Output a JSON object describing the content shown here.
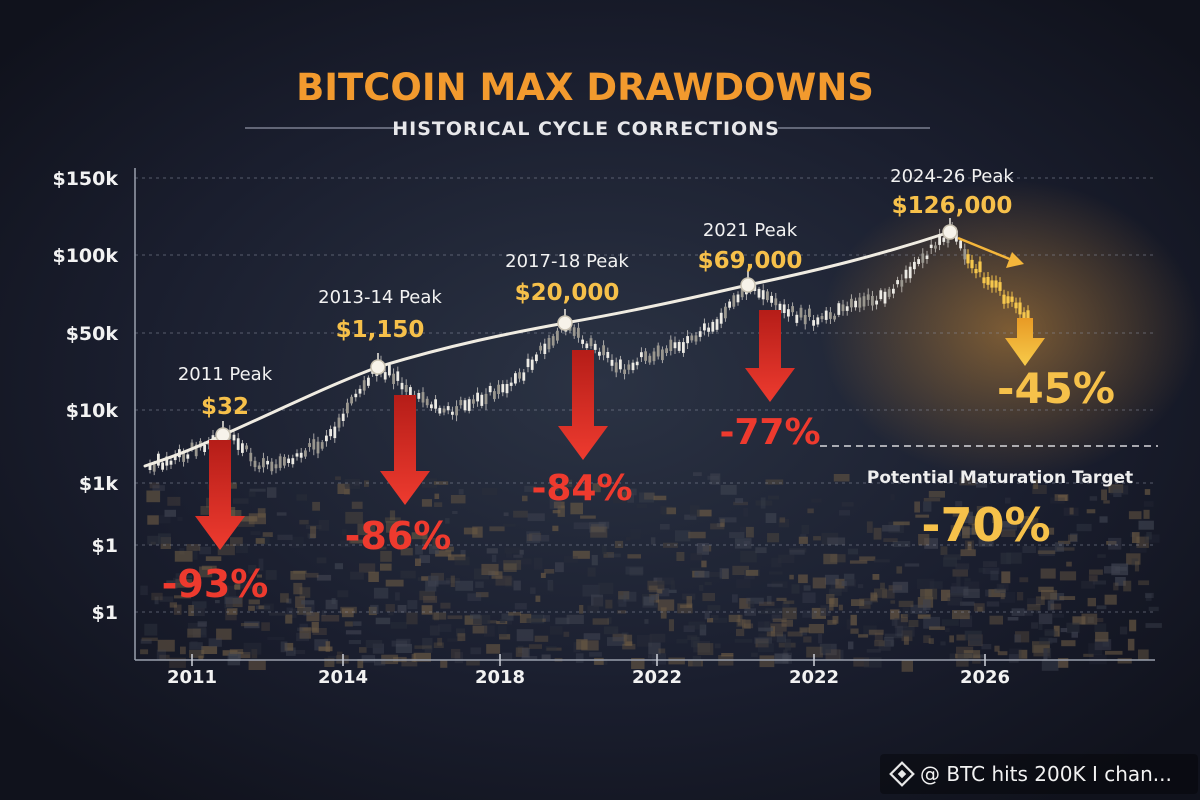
{
  "chart_data": {
    "type": "line",
    "title": "BITCOIN MAX DRAWDOWNS",
    "subtitle": "HISTORICAL CYCLE CORRECTIONS",
    "y_ticks": [
      "$150k",
      "$100k",
      "$50k",
      "$10k",
      "$1k",
      "$1",
      "$1"
    ],
    "x_ticks": [
      "2011",
      "2014",
      "2018",
      "2022",
      "2022",
      "2026"
    ],
    "scale": "log",
    "peaks": [
      {
        "label": "2011 Peak",
        "price_label": "$32",
        "price": 32,
        "drawdown_label": "-93%",
        "drawdown": -93
      },
      {
        "label": "2013-14 Peak",
        "price_label": "$1,150",
        "price": 1150,
        "drawdown_label": "-86%",
        "drawdown": -86
      },
      {
        "label": "2017-18 Peak",
        "price_label": "$20,000",
        "price": 20000,
        "drawdown_label": "-84%",
        "drawdown": -84
      },
      {
        "label": "2021 Peak",
        "price_label": "$69,000",
        "price": 69000,
        "drawdown_label": "-77%",
        "drawdown": -77
      },
      {
        "label": "2024-26 Peak",
        "price_label": "$126,000",
        "price": 126000,
        "drawdown_label": "-45%",
        "drawdown": -45
      }
    ],
    "target": {
      "label": "Potential Maturation Target",
      "value_label": "-70%",
      "value": -70
    },
    "colors": {
      "title": "#f29a2e",
      "peak_price": "#f6c04a",
      "drawdown_red": "#e5332a",
      "projection": "#f4b63b",
      "trend": "#f0ece2"
    }
  },
  "watermark": {
    "text": "@ BTC hits 200K I chan...",
    "icon": "binance-icon"
  }
}
